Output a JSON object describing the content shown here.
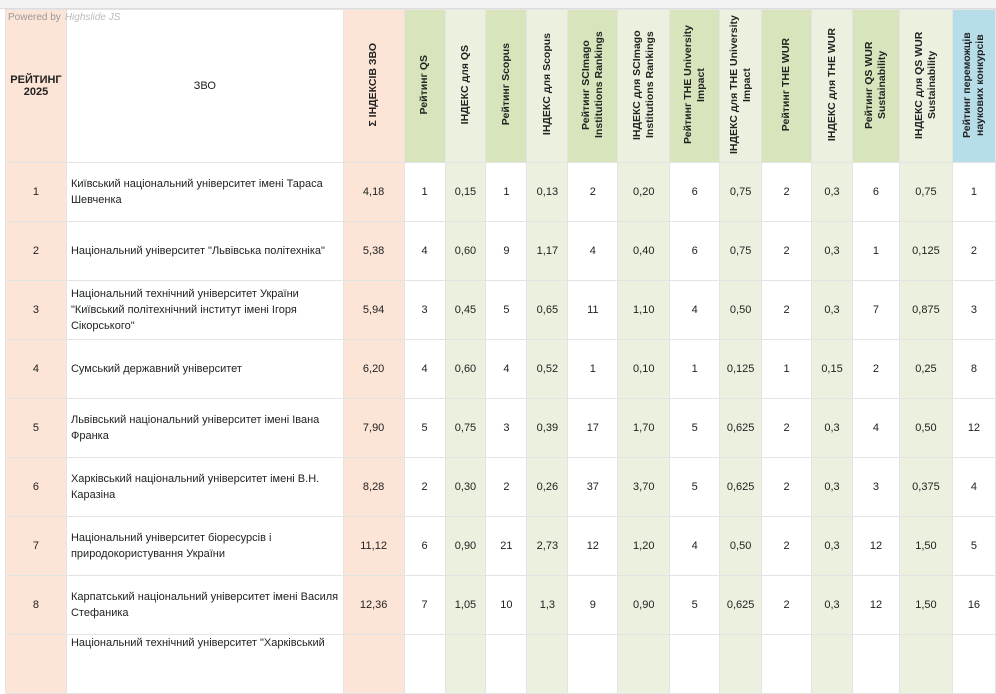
{
  "powered_by": "Powered by",
  "powered_brand": "Highslide JS",
  "headers": [
    "РЕЙТИНГ 2025",
    "ЗВО",
    "Σ ІНДЕКСІВ ЗВО",
    "Рейтинг QS",
    "ІНДЕКС для QS",
    "Рейтинг Scopus",
    "ІНДЕКС для Scopus",
    "Рейтинг SCImago Institutions Rankings",
    "ІНДЕКС для SCImago Institutions Rankings",
    "Рейтинг THE University Impact",
    "ІНДЕКС для THE University Impact",
    "Рейтинг THE  WUR",
    "ІНДЕКС для THE  WUR",
    "Рейтинг QS WUR Sustainability",
    "ІНДЕКС для QS WUR Sustainability",
    "Рейтинг переможців наукових конкурсів"
  ],
  "rows": [
    [
      "1",
      "Київський національний університет імені Тараса Шевченка",
      "4,18",
      "1",
      "0,15",
      "1",
      "0,13",
      "2",
      "0,20",
      "6",
      "0,75",
      "2",
      "0,3",
      "6",
      "0,75",
      "1"
    ],
    [
      "2",
      "Національний університет \"Львівська політехніка\"",
      "5,38",
      "4",
      "0,60",
      "9",
      "1,17",
      "4",
      "0,40",
      "6",
      "0,75",
      "2",
      "0,3",
      "1",
      "0,125",
      "2"
    ],
    [
      "3",
      "Національний технічний університет України \"Київський політехнічний інститут імені Ігоря Сікорського\"",
      "5,94",
      "3",
      "0,45",
      "5",
      "0,65",
      "11",
      "1,10",
      "4",
      "0,50",
      "2",
      "0,3",
      "7",
      "0,875",
      "3"
    ],
    [
      "4",
      "Сумський державний університет",
      "6,20",
      "4",
      "0,60",
      "4",
      "0,52",
      "1",
      "0,10",
      "1",
      "0,125",
      "1",
      "0,15",
      "2",
      "0,25",
      "8"
    ],
    [
      "5",
      "Львівський національний університет імені Івана Франка",
      "7,90",
      "5",
      "0,75",
      "3",
      "0,39",
      "17",
      "1,70",
      "5",
      "0,625",
      "2",
      "0,3",
      "4",
      "0,50",
      "12"
    ],
    [
      "6",
      "Харківський національний університет імені В.Н. Каразіна",
      "8,28",
      "2",
      "0,30",
      "2",
      "0,26",
      "37",
      "3,70",
      "5",
      "0,625",
      "2",
      "0,3",
      "3",
      "0,375",
      "4"
    ],
    [
      "7",
      "Національний університет біоресурсів і природокористування України",
      "11,12",
      "6",
      "0,90",
      "21",
      "2,73",
      "12",
      "1,20",
      "4",
      "0,50",
      "2",
      "0,3",
      "12",
      "1,50",
      "5"
    ],
    [
      "8",
      "Карпатський національний університет імені Василя Стефаника",
      "12,36",
      "7",
      "1,05",
      "10",
      "1,3",
      "9",
      "0,90",
      "5",
      "0,625",
      "2",
      "0,3",
      "12",
      "1,50",
      "16"
    ],
    [
      "",
      "Національний технічний університет \"Харківський",
      "",
      "",
      "",
      "",
      "",
      "",
      "",
      "",
      "",
      "",
      "",
      "",
      "",
      ""
    ]
  ]
}
